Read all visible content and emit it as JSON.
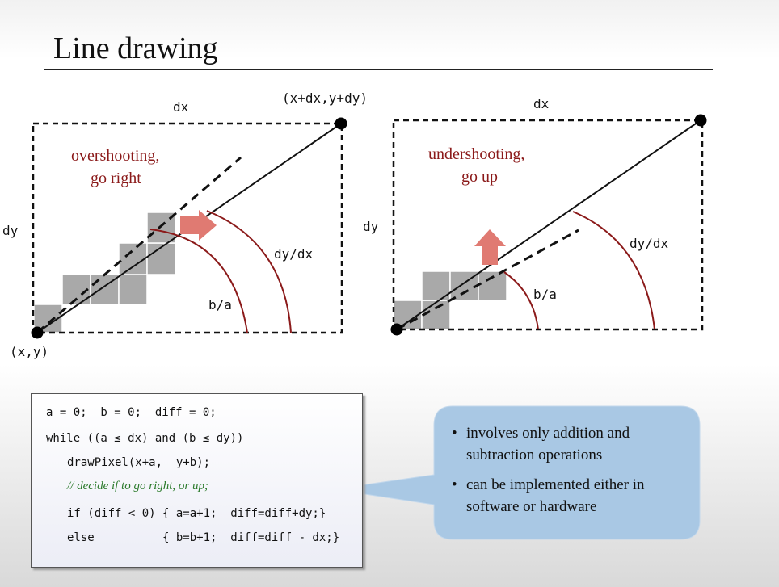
{
  "slide": {
    "title": "Line drawing"
  },
  "left_diagram": {
    "dx_label": "dx",
    "dy_label": "dy",
    "end_label": "(x+dx,y+dy)",
    "start_label": "(x,y)",
    "annotation_line1": "overshooting,",
    "annotation_line2": "go right",
    "slope_label": "dy/dx",
    "ratio_label": "b/a",
    "arrow_direction": "right"
  },
  "right_diagram": {
    "dx_label": "dx",
    "dy_label": "dy",
    "annotation_line1": "undershooting,",
    "annotation_line2": "go up",
    "slope_label": "dy/dx",
    "ratio_label": "b/a",
    "arrow_direction": "up"
  },
  "code": {
    "lines": [
      "a = 0;  b = 0;  diff = 0;",
      "while ((a ≤ dx) and (b ≤ dy))",
      "drawPixel(x+a,  y+b);",
      "// decide if to go right, or up;",
      "if (diff < 0) { a=a+1;  diff=diff+dy;}",
      "else          { b=b+1;  diff=diff - dx;}"
    ]
  },
  "callout": {
    "bullet_symbol": "•",
    "bullets": [
      {
        "line1": "involves only addition and",
        "line2": "subtraction operations"
      },
      {
        "line1": "can be implemented either in",
        "line2": "software or hardware"
      }
    ]
  },
  "colors": {
    "annotation_red": "#8b1a1a",
    "arrow_red": "#e07a72",
    "pixel_gray": "#a9a9a9",
    "comment_green": "#2b7a2b",
    "callout_blue": "#a9c8e4"
  }
}
